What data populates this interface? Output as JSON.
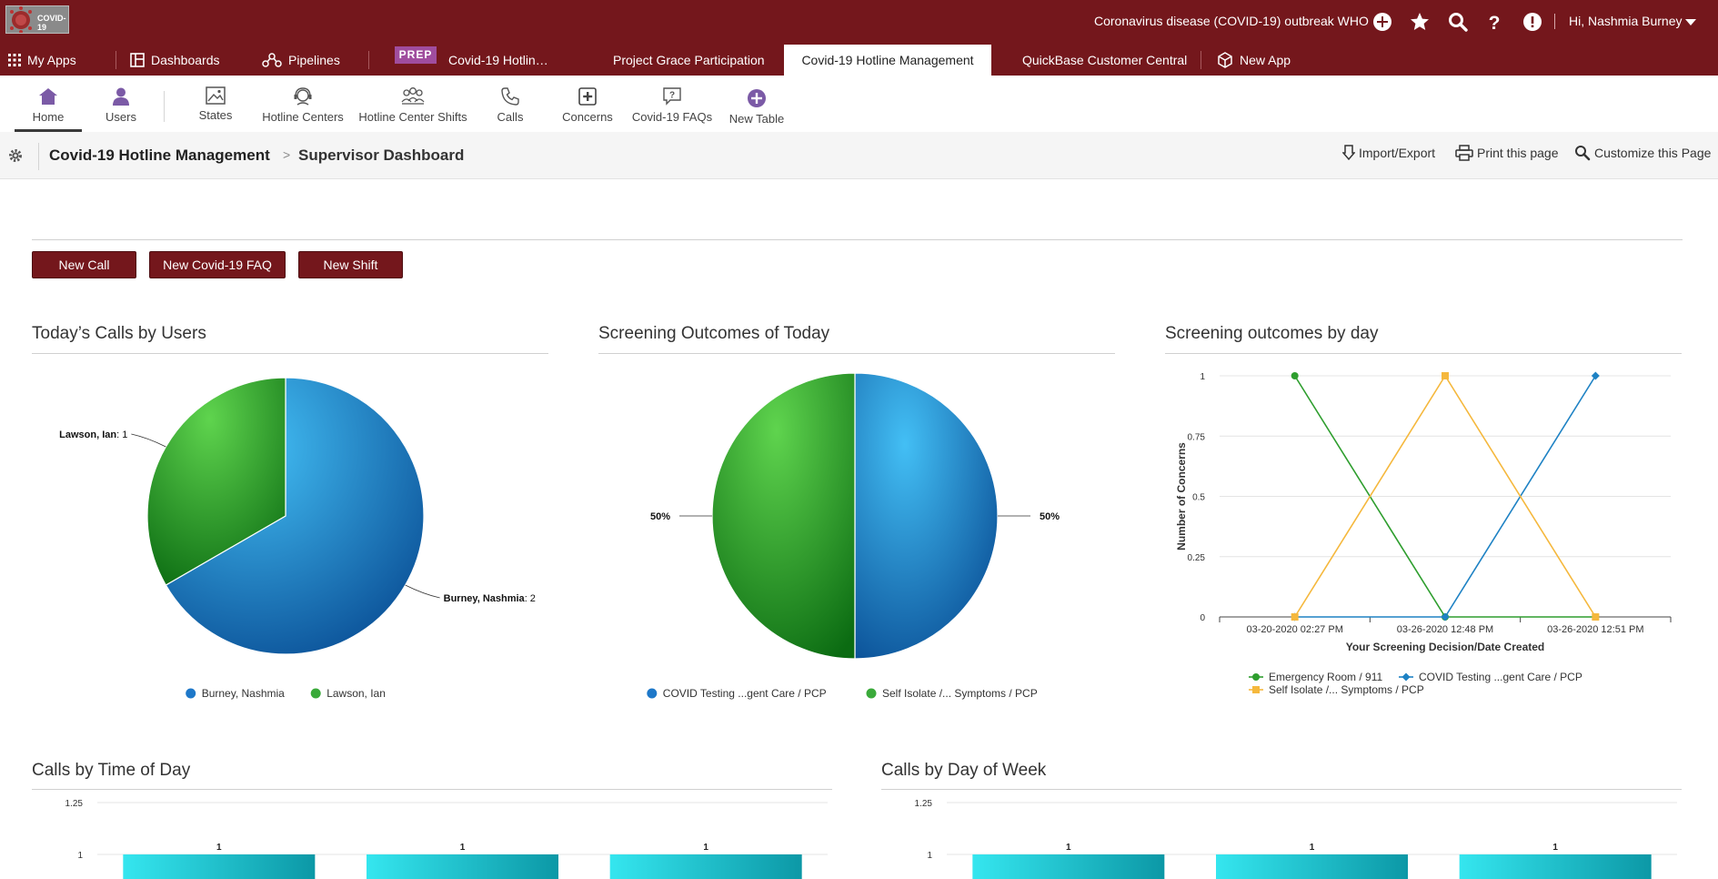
{
  "colors": {
    "brand": "#74171c",
    "pie_blue": "#1e78c9",
    "pie_green": "#3aaa3a",
    "line_green": "#2e9e2e",
    "line_blue": "#1e82c4",
    "line_orange": "#f5b83d",
    "bar_teal": "#22c8d6"
  },
  "topbar": {
    "logo_text": "COVID-19",
    "title": "Coronavirus disease (COVID-19) outbreak WHO",
    "icons": [
      "add-circle-icon",
      "star-icon",
      "search-icon",
      "help-icon",
      "alert-icon"
    ],
    "user_greeting": "Hi, Nashmia Burney"
  },
  "tabs": {
    "my_apps": "My Apps",
    "dashboards": "Dashboards",
    "pipelines": "Pipelines",
    "prep_badge": "PREP",
    "covid_short": "Covid-19 Hotlin…",
    "project_grace": "Project Grace Participation",
    "active": "Covid-19 Hotline Management",
    "quickbase": "QuickBase Customer Central",
    "new_app": "New App"
  },
  "tables": {
    "home": "Home",
    "users": "Users",
    "states": "States",
    "hotline_centers": "Hotline Centers",
    "shifts": "Hotline Center Shifts",
    "calls": "Calls",
    "concerns": "Concerns",
    "faqs": "Covid-19 FAQs",
    "new_table": "New Table"
  },
  "breadcrumb": {
    "app": "Covid-19 Hotline Management",
    "separator": ">",
    "page": "Supervisor Dashboard"
  },
  "page_actions": {
    "import_export": "Import/Export",
    "print": "Print this page",
    "customize": "Customize this Page"
  },
  "buttons": {
    "new_call": "New Call",
    "new_faq": "New Covid-19 FAQ",
    "new_shift": "New Shift"
  },
  "panels": {
    "calls_by_users": "Today’s Calls by Users",
    "screening_today": "Screening Outcomes of Today",
    "screening_by_day": "Screening outcomes by day",
    "calls_by_time": "Calls by Time of Day",
    "calls_by_weekday": "Calls by Day of Week"
  },
  "chart_data": [
    {
      "type": "pie",
      "title": "Today’s Calls by Users",
      "labels": [
        "Burney, Nashmia",
        "Lawson, Ian"
      ],
      "values": [
        2,
        1
      ],
      "slice_labels": [
        "Burney, Nashmia: 2",
        "Lawson, Ian: 1"
      ],
      "legend": "bottom"
    },
    {
      "type": "pie",
      "title": "Screening Outcomes of Today",
      "labels": [
        "COVID Testing ...gent Care / PCP",
        "Self Isolate /... Symptoms / PCP"
      ],
      "values": [
        50,
        50
      ],
      "slice_labels": [
        "50%",
        "50%"
      ],
      "legend": "bottom"
    },
    {
      "type": "line",
      "title": "Screening outcomes by day",
      "categories": [
        "03-20-2020 02:27 PM",
        "03-26-2020 12:48 PM",
        "03-26-2020 12:51 PM"
      ],
      "series": [
        {
          "name": "Emergency Room / 911",
          "values": [
            1,
            0,
            0
          ]
        },
        {
          "name": "COVID Testing ...gent Care / PCP",
          "values": [
            0,
            0,
            1
          ]
        },
        {
          "name": "Self Isolate /... Symptoms / PCP",
          "values": [
            0,
            1,
            0
          ]
        }
      ],
      "xlabel": "Your Screening Decision/Date Created",
      "ylabel": "Number of Concerns",
      "ylim": [
        0,
        1
      ],
      "yticks": [
        "0",
        "0.25",
        "0.5",
        "0.75",
        "1"
      ],
      "grid": true,
      "legend": "bottom"
    },
    {
      "type": "bar",
      "title": "Calls by Time of Day",
      "values": [
        1,
        1,
        1
      ],
      "data_labels": [
        "1",
        "1",
        "1"
      ],
      "yticks": [
        "1.25",
        "1"
      ]
    },
    {
      "type": "bar",
      "title": "Calls by Day of Week",
      "values": [
        1,
        1,
        1
      ],
      "data_labels": [
        "1",
        "1",
        "1"
      ],
      "yticks": [
        "1.25",
        "1"
      ]
    }
  ]
}
